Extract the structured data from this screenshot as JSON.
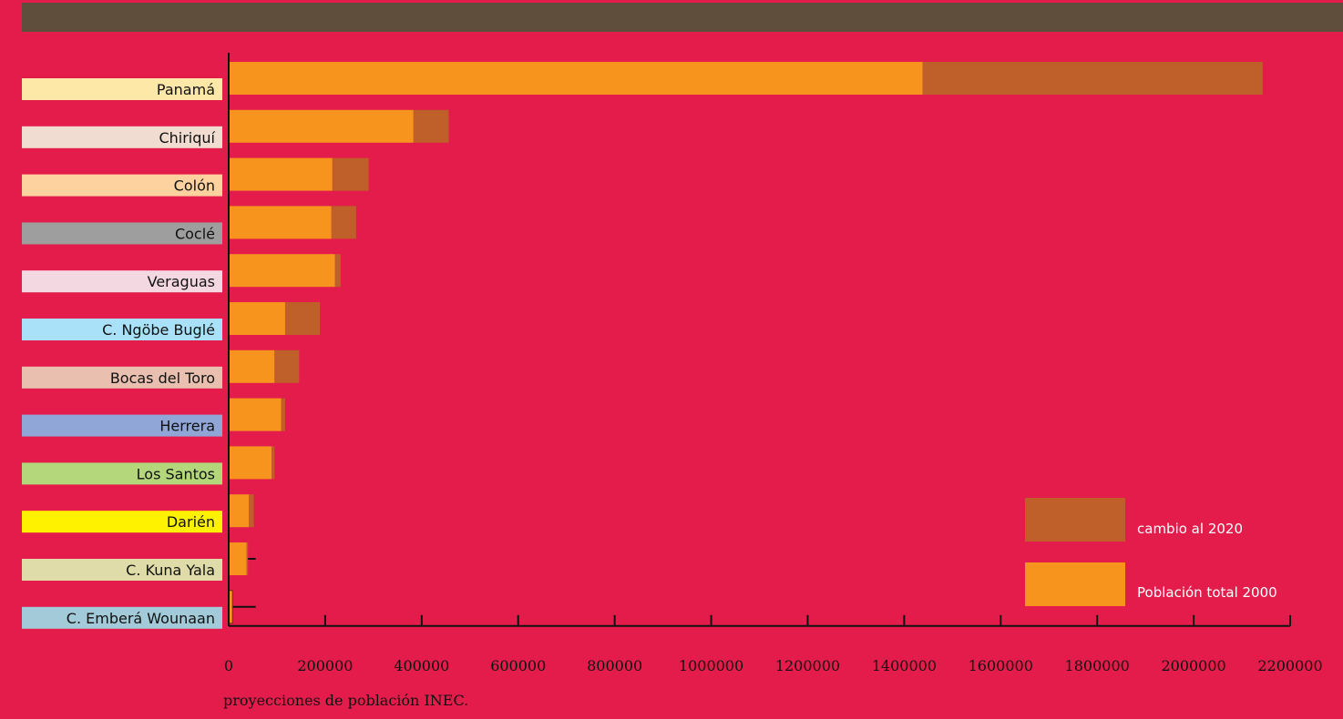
{
  "chart_data": {
    "type": "bar",
    "orientation": "horizontal",
    "stacked": true,
    "categories": [
      "Panamá",
      "Chiriquí",
      "Colón",
      "Coclé",
      "Veraguas",
      "C. Ngöbe Buglé",
      "Bocas del Toro",
      "Herrera",
      "Los Santos",
      "Darién",
      "C. Kuna Yala",
      "C. Emberá Wounaan"
    ],
    "category_colors": [
      "#fde8a8",
      "#f1dcd2",
      "#fdd29f",
      "#9e9e9e",
      "#f3d8e2",
      "#a9e1f9",
      "#e9c0b0",
      "#8fa6d7",
      "#b3d77a",
      "#fff200",
      "#dfdcaa",
      "#a3cad8"
    ],
    "series": [
      {
        "name": "Población total 2000",
        "color": "#f7941d",
        "values": [
          1438000,
          383000,
          215000,
          213000,
          220000,
          117000,
          95000,
          109000,
          89000,
          42000,
          37000,
          8000
        ]
      },
      {
        "name": "cambio al 2020",
        "color": "#bf5f29",
        "values": [
          705000,
          73000,
          75000,
          51000,
          12000,
          72000,
          51000,
          8000,
          6000,
          10000,
          3000,
          0
        ]
      }
    ],
    "whisker_values": [
      null,
      null,
      null,
      null,
      null,
      null,
      null,
      null,
      null,
      52000,
      56000,
      56000
    ],
    "xlim": [
      0,
      2200000
    ],
    "x_ticks": [
      "0",
      "200000",
      "400000",
      "600000",
      "800000",
      "1000000",
      "1200000",
      "1400000",
      "1600000",
      "1800000",
      "2000000",
      "2200000"
    ],
    "legend_position": "bottom-right",
    "source_note": "proyecciones de población INEC."
  }
}
